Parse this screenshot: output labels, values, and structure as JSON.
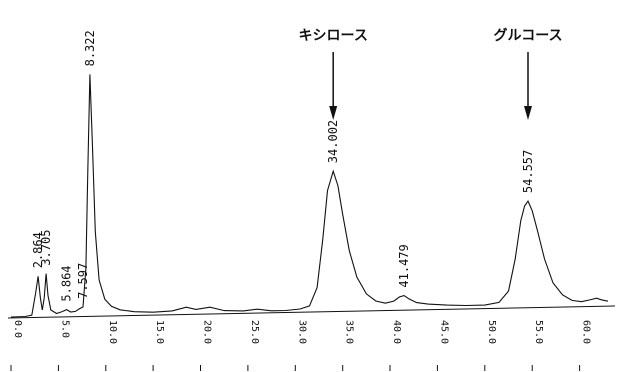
{
  "chart_data": {
    "type": "line",
    "title": "",
    "xlabel": "",
    "ylabel": "",
    "xlim": [
      0,
      63
    ],
    "ylim": [
      0,
      100
    ],
    "x_tick_labels": [
      "0.0",
      "5.0",
      "10.0",
      "15.0",
      "20.0",
      "25.0",
      "30.0",
      "35.0",
      "40.0",
      "45.0",
      "50.0",
      "55.0",
      "60.0"
    ],
    "peaks": [
      {
        "rt": 2.864,
        "label": "2.864",
        "height": 17
      },
      {
        "rt": 3.705,
        "label": "3.705",
        "height": 18
      },
      {
        "rt": 5.864,
        "label": "5.864",
        "height": 3
      },
      {
        "rt": 7.597,
        "label": "7.597",
        "height": 4
      },
      {
        "rt": 8.322,
        "label": "8.322",
        "height": 100
      },
      {
        "rt": 34.002,
        "label": "34.002",
        "height": 58
      },
      {
        "rt": 41.479,
        "label": "41.479",
        "height": 6
      },
      {
        "rt": 54.557,
        "label": "54.557",
        "height": 44
      }
    ],
    "series": [
      {
        "values": [
          [
            0,
            0.4
          ],
          [
            1.5,
            0.5
          ],
          [
            2.2,
            1
          ],
          [
            2.6,
            10
          ],
          [
            2.864,
            17
          ],
          [
            3.1,
            8
          ],
          [
            3.3,
            3
          ],
          [
            3.5,
            8
          ],
          [
            3.705,
            18
          ],
          [
            3.9,
            9
          ],
          [
            4.2,
            3
          ],
          [
            4.8,
            1.5
          ],
          [
            5.4,
            2.2
          ],
          [
            5.864,
            3
          ],
          [
            6.3,
            2
          ],
          [
            6.8,
            2.2
          ],
          [
            7.2,
            3.2
          ],
          [
            7.597,
            4
          ],
          [
            7.9,
            20
          ],
          [
            8.1,
            60
          ],
          [
            8.322,
            100
          ],
          [
            8.6,
            70
          ],
          [
            8.9,
            35
          ],
          [
            9.3,
            15
          ],
          [
            9.9,
            7
          ],
          [
            10.6,
            4
          ],
          [
            11.5,
            2.5
          ],
          [
            13,
            1.6
          ],
          [
            15,
            1.2
          ],
          [
            17,
            1.6
          ],
          [
            18.5,
            3
          ],
          [
            19.5,
            2
          ],
          [
            21,
            2.8
          ],
          [
            22.5,
            1.3
          ],
          [
            24.5,
            1
          ],
          [
            26,
            1.6
          ],
          [
            27.5,
            0.8
          ],
          [
            29,
            0.8
          ],
          [
            30.5,
            1.3
          ],
          [
            31.5,
            2.5
          ],
          [
            32.3,
            10
          ],
          [
            32.9,
            30
          ],
          [
            33.4,
            50
          ],
          [
            34.002,
            58
          ],
          [
            34.5,
            52
          ],
          [
            35,
            40
          ],
          [
            35.7,
            25
          ],
          [
            36.5,
            14
          ],
          [
            37.5,
            7
          ],
          [
            38.5,
            4
          ],
          [
            39.5,
            3
          ],
          [
            40.4,
            3.8
          ],
          [
            41.0,
            5.5
          ],
          [
            41.479,
            6
          ],
          [
            42,
            4.6
          ],
          [
            42.8,
            3
          ],
          [
            44,
            2.3
          ],
          [
            46,
            1.7
          ],
          [
            48,
            1.4
          ],
          [
            50,
            1.4
          ],
          [
            51.5,
            2.4
          ],
          [
            52.5,
            7
          ],
          [
            53.2,
            20
          ],
          [
            53.8,
            36
          ],
          [
            54.2,
            42
          ],
          [
            54.557,
            44
          ],
          [
            55,
            40
          ],
          [
            55.6,
            31
          ],
          [
            56.3,
            20
          ],
          [
            57.2,
            10
          ],
          [
            58.2,
            5
          ],
          [
            59.2,
            2.6
          ],
          [
            60.2,
            2
          ],
          [
            61.2,
            2.8
          ],
          [
            61.8,
            3.3
          ],
          [
            62.3,
            2.6
          ],
          [
            63,
            2
          ]
        ]
      }
    ],
    "annotations": [
      {
        "label": "キシロース",
        "target_rt": 34.002
      },
      {
        "label": "グルコース",
        "target_rt": 54.557
      }
    ]
  }
}
